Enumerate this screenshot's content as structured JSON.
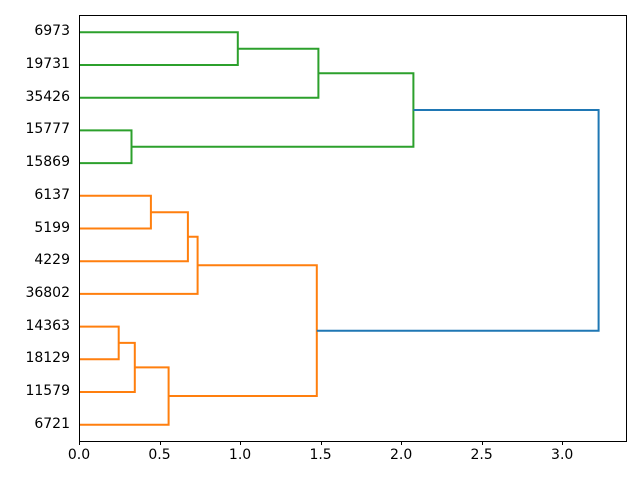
{
  "figure": {
    "background": "#ffffff",
    "plot_border_color": "#000000"
  },
  "chart_data": {
    "type": "dendrogram",
    "orientation": "right",
    "title": "",
    "xlabel": "",
    "ylabel": "",
    "grid": false,
    "legend": null,
    "leaves": [
      "6973",
      "19731",
      "35426",
      "15777",
      "15869",
      "6137",
      "5199",
      "4229",
      "36802",
      "14363",
      "18129",
      "11579",
      "6721"
    ],
    "links": [
      {
        "id": "g1",
        "children": [
          "6973",
          "19731"
        ],
        "distance": 0.98,
        "color": "#2ca02c"
      },
      {
        "id": "g2",
        "children": [
          "g1",
          "35426"
        ],
        "distance": 1.48,
        "color": "#2ca02c"
      },
      {
        "id": "g3",
        "children": [
          "15777",
          "15869"
        ],
        "distance": 0.32,
        "color": "#2ca02c"
      },
      {
        "id": "g4",
        "children": [
          "g2",
          "g3"
        ],
        "distance": 2.07,
        "color": "#2ca02c"
      },
      {
        "id": "o1",
        "children": [
          "6137",
          "5199"
        ],
        "distance": 0.44,
        "color": "#ff7f0e"
      },
      {
        "id": "o2",
        "children": [
          "o1",
          "4229"
        ],
        "distance": 0.67,
        "color": "#ff7f0e"
      },
      {
        "id": "o3",
        "children": [
          "o2",
          "36802"
        ],
        "distance": 0.73,
        "color": "#ff7f0e"
      },
      {
        "id": "o4",
        "children": [
          "14363",
          "18129"
        ],
        "distance": 0.24,
        "color": "#ff7f0e"
      },
      {
        "id": "o5",
        "children": [
          "o4",
          "11579"
        ],
        "distance": 0.34,
        "color": "#ff7f0e"
      },
      {
        "id": "o6",
        "children": [
          "o5",
          "6721"
        ],
        "distance": 0.55,
        "color": "#ff7f0e"
      },
      {
        "id": "o7",
        "children": [
          "o3",
          "o6"
        ],
        "distance": 1.47,
        "color": "#ff7f0e"
      },
      {
        "id": "root",
        "children": [
          "g4",
          "o7"
        ],
        "distance": 3.22,
        "color": "#1f77b4"
      }
    ],
    "x_ticks": [
      "0.0",
      "0.5",
      "1.0",
      "1.5",
      "2.0",
      "2.5",
      "3.0"
    ],
    "x_tick_values": [
      0,
      0.5,
      1.0,
      1.5,
      2.0,
      2.5,
      3.0
    ],
    "xlim": [
      0,
      3.39
    ],
    "colors": {
      "cluster_green": "#2ca02c",
      "cluster_orange": "#ff7f0e",
      "root_blue": "#1f77b4"
    },
    "line_width": 2
  }
}
